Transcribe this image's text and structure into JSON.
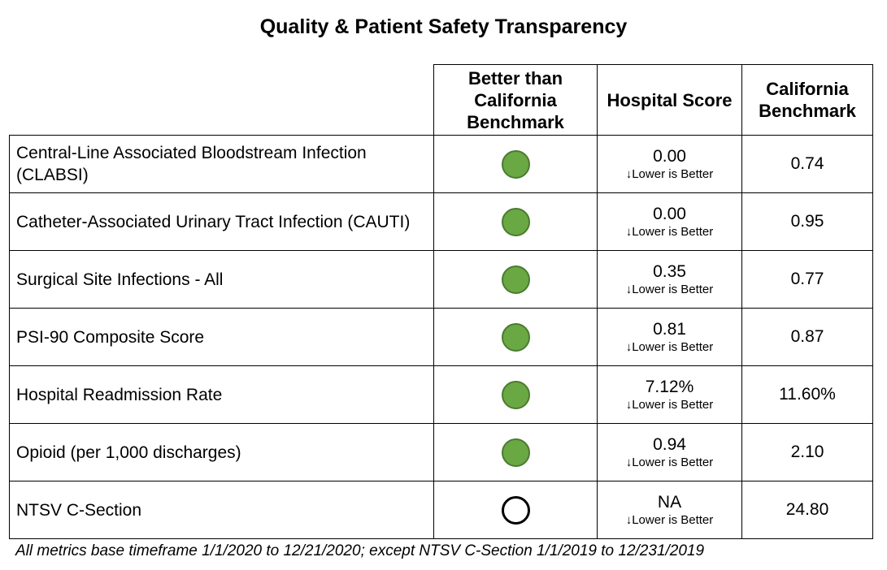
{
  "title": "Quality & Patient Safety Transparency",
  "headers": {
    "better": "Better than California Benchmark",
    "score": "Hospital Score",
    "benchmark": "California Benchmark"
  },
  "colors": {
    "better_dot": "#6aa843",
    "better_dot_border": "#4a7b31",
    "not_better_dot_border": "#000000"
  },
  "rows": [
    {
      "metric": "Central-Line Associated Bloodstream Infection (CLABSI)",
      "better": true,
      "score": "0.00",
      "note": "↓Lower is Better",
      "benchmark": "0.74"
    },
    {
      "metric": "Catheter-Associated Urinary Tract Infection (CAUTI)",
      "better": true,
      "score": "0.00",
      "note": "↓Lower is Better",
      "benchmark": "0.95"
    },
    {
      "metric": "Surgical Site Infections - All",
      "better": true,
      "score": "0.35",
      "note": "↓Lower is Better",
      "benchmark": "0.77"
    },
    {
      "metric": "PSI-90 Composite Score",
      "better": true,
      "score": "0.81",
      "note": "↓Lower is Better",
      "benchmark": "0.87"
    },
    {
      "metric": "Hospital Readmission Rate",
      "better": true,
      "score": "7.12%",
      "note": "↓Lower is Better",
      "benchmark": "11.60%"
    },
    {
      "metric": "Opioid (per 1,000 discharges)",
      "better": true,
      "score": "0.94",
      "note": "↓Lower is Better",
      "benchmark": "2.10"
    },
    {
      "metric": "NTSV C-Section",
      "better": false,
      "score": "NA",
      "note": "↓Lower is Better",
      "benchmark": "24.80"
    }
  ],
  "footnote": "All metrics base timeframe 1/1/2020 to 12/21/2020; except NTSV C-Section 1/1/2019 to 12/231/2019"
}
